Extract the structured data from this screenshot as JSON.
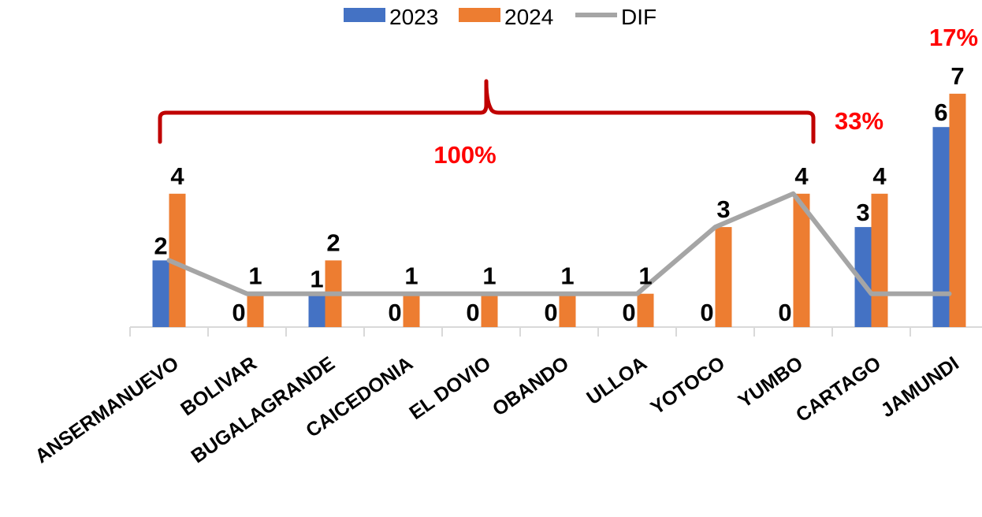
{
  "chart_data": {
    "type": "bar",
    "categories": [
      "ANSERMANUEVO",
      "BOLIVAR",
      "BUGALAGRANDE",
      "CAICEDONIA",
      "EL DOVIO",
      "OBANDO",
      "ULLOA",
      "YOTOCO",
      "YUMBO",
      "CARTAGO",
      "JAMUNDI"
    ],
    "series": [
      {
        "name": "2023",
        "kind": "bar",
        "color": "#4472c4",
        "values": [
          2,
          0,
          1,
          0,
          0,
          0,
          0,
          0,
          0,
          3,
          6
        ]
      },
      {
        "name": "2024",
        "kind": "bar",
        "color": "#ed7d31",
        "values": [
          4,
          1,
          2,
          1,
          1,
          1,
          1,
          3,
          4,
          4,
          7
        ]
      },
      {
        "name": "DIF",
        "kind": "line",
        "color": "#a5a5a5",
        "values": [
          2,
          1,
          1,
          1,
          1,
          1,
          1,
          3,
          4,
          1,
          1
        ]
      }
    ],
    "ylim": [
      0,
      8
    ],
    "legend_position": "top-center",
    "annotations": {
      "group_percent": "100%",
      "cartago_percent": "33%",
      "jamundi_percent": "17%"
    },
    "annotation_color": "#ff0000",
    "bracket_color": "#c00000"
  }
}
